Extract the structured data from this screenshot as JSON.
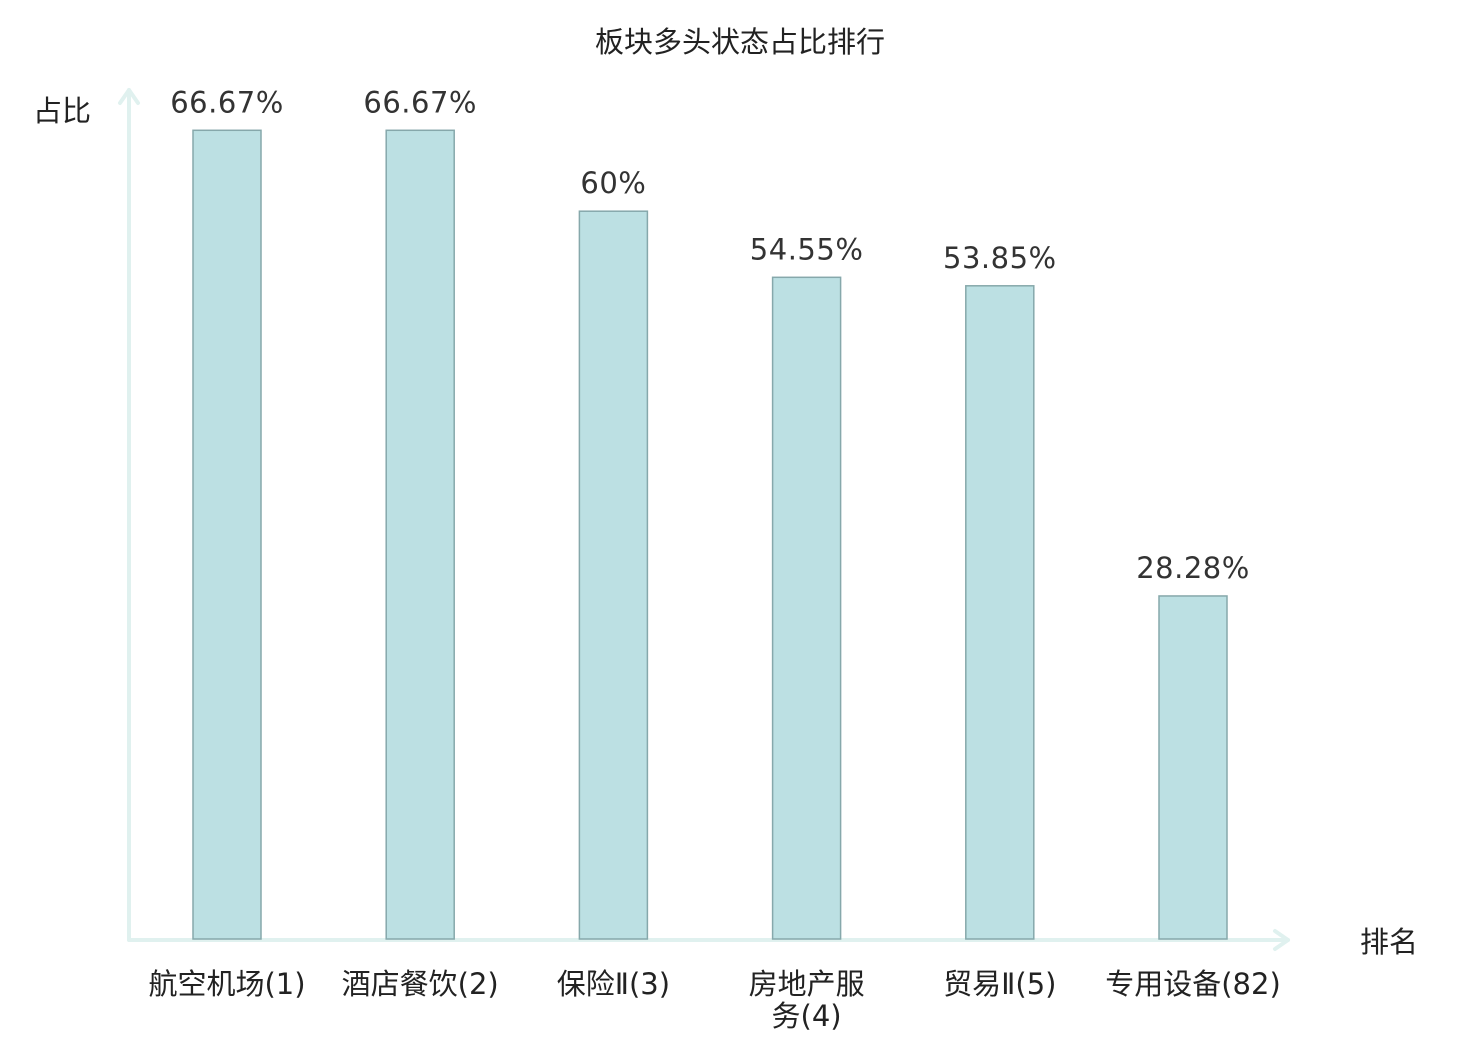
{
  "chart_data": {
    "type": "bar",
    "title": "板块多头状态占比排行",
    "ylabel": "占比",
    "xlabel": "排名",
    "ylim": [
      0,
      70
    ],
    "grid": false,
    "legend": "none",
    "categories": [
      [
        "航空机场(1)"
      ],
      [
        "酒店餐饮(2)"
      ],
      [
        "保险Ⅱ(3)"
      ],
      [
        "房地产服",
        "务(4)"
      ],
      [
        "贸易Ⅱ(5)"
      ],
      [
        "专用设备(82)"
      ]
    ],
    "values": [
      66.67,
      66.67,
      60,
      54.55,
      53.85,
      28.28
    ],
    "value_labels": [
      "66.67%",
      "66.67%",
      "60%",
      "54.55%",
      "53.85%",
      "28.28%"
    ],
    "highlight_index": 5,
    "colors": {
      "bar_fill": "#bce0e3",
      "bar_stroke": "#86a8ab",
      "axis": "#e0f1ef",
      "highlight_text": "#e8262b",
      "text": "#222222"
    }
  }
}
